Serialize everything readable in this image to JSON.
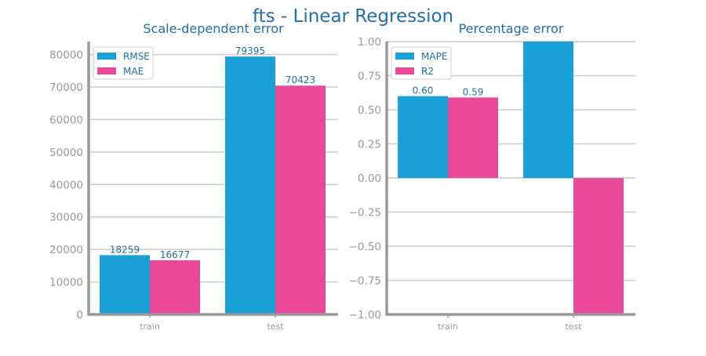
{
  "figure": {
    "title": "fts - Linear Regression",
    "title_color": "#1f6fa8",
    "text_color": "#1f6fa8",
    "tick_color": "#999999",
    "axis_color": "#999999",
    "grid_color": "#cccccc"
  },
  "chart_data": [
    {
      "type": "bar",
      "title": "Scale-dependent error",
      "categories": [
        "train",
        "test"
      ],
      "series": [
        {
          "name": "RMSE",
          "color": "#1a9fd6",
          "values": [
            18259,
            79395
          ],
          "labels": [
            "18259",
            "79395"
          ]
        },
        {
          "name": "MAE",
          "color": "#ea4899",
          "values": [
            16677,
            70423
          ],
          "labels": [
            "16677",
            "70423"
          ]
        }
      ],
      "ylim": [
        0,
        84000
      ],
      "yticks": [
        0,
        10000,
        20000,
        30000,
        40000,
        50000,
        60000,
        70000,
        80000
      ],
      "ytick_labels": [
        "0",
        "10000",
        "20000",
        "30000",
        "40000",
        "50000",
        "60000",
        "70000",
        "80000"
      ],
      "grid": true,
      "legend": "top-left"
    },
    {
      "type": "bar",
      "title": "Percentage error",
      "categories": [
        "train",
        "test"
      ],
      "series": [
        {
          "name": "MAPE",
          "color": "#1a9fd6",
          "values": [
            0.6,
            1.0
          ],
          "labels": [
            "0.60",
            ""
          ]
        },
        {
          "name": "R2",
          "color": "#ea4899",
          "values": [
            0.59,
            -1.0
          ],
          "labels": [
            "0.59",
            ""
          ]
        }
      ],
      "ylim": [
        -1.0,
        1.0
      ],
      "yticks": [
        -1.0,
        -0.75,
        -0.5,
        -0.25,
        0.0,
        0.25,
        0.5,
        0.75,
        1.0
      ],
      "ytick_labels": [
        "−1.00",
        "−0.75",
        "−0.50",
        "−0.25",
        "0.00",
        "0.25",
        "0.50",
        "0.75",
        "1.00"
      ],
      "grid": true,
      "legend": "top-left"
    }
  ]
}
